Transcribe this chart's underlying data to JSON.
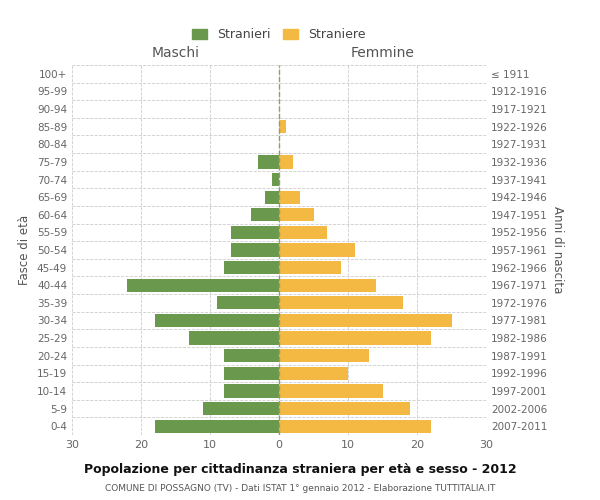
{
  "age_groups": [
    "0-4",
    "5-9",
    "10-14",
    "15-19",
    "20-24",
    "25-29",
    "30-34",
    "35-39",
    "40-44",
    "45-49",
    "50-54",
    "55-59",
    "60-64",
    "65-69",
    "70-74",
    "75-79",
    "80-84",
    "85-89",
    "90-94",
    "95-99",
    "100+"
  ],
  "birth_years": [
    "2007-2011",
    "2002-2006",
    "1997-2001",
    "1992-1996",
    "1987-1991",
    "1982-1986",
    "1977-1981",
    "1972-1976",
    "1967-1971",
    "1962-1966",
    "1957-1961",
    "1952-1956",
    "1947-1951",
    "1942-1946",
    "1937-1941",
    "1932-1936",
    "1927-1931",
    "1922-1926",
    "1917-1921",
    "1912-1916",
    "≤ 1911"
  ],
  "maschi": [
    18,
    11,
    8,
    8,
    8,
    13,
    18,
    9,
    22,
    8,
    7,
    7,
    4,
    2,
    1,
    3,
    0,
    0,
    0,
    0,
    0
  ],
  "femmine": [
    22,
    19,
    15,
    10,
    13,
    22,
    25,
    18,
    14,
    9,
    11,
    7,
    5,
    3,
    0,
    2,
    0,
    1,
    0,
    0,
    0
  ],
  "maschi_color": "#6a994e",
  "femmine_color": "#f4b942",
  "background_color": "#ffffff",
  "grid_color": "#cccccc",
  "title": "Popolazione per cittadinanza straniera per età e sesso - 2012",
  "subtitle": "COMUNE DI POSSAGNO (TV) - Dati ISTAT 1° gennaio 2012 - Elaborazione TUTTITALIA.IT",
  "ylabel_left": "Fasce di età",
  "ylabel_right": "Anni di nascita",
  "xlabel_maschi": "Maschi",
  "xlabel_femmine": "Femmine",
  "legend_maschi": "Stranieri",
  "legend_femmine": "Straniere",
  "xlim": 30
}
